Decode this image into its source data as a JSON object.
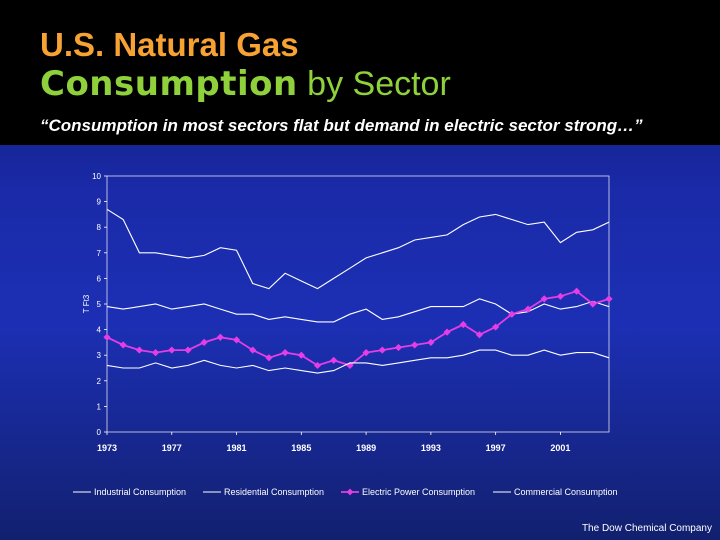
{
  "header": {
    "title_line1": "U.S. Natural Gas",
    "title_line2_bold": "Consumption",
    "title_line2_rest": "by Sector",
    "subtitle": "“Consumption in most sectors flat but demand in electric sector strong…”"
  },
  "footer": {
    "company": "The Dow Chemical Company"
  },
  "colors": {
    "header_bg": "#000000",
    "title1": "#f7a233",
    "title2": "#8fd13a",
    "series_line": "#ffffff",
    "electric": "#e63de6"
  },
  "chart_data": {
    "type": "line",
    "title": "",
    "xlabel": "",
    "ylabel": "T Ft3",
    "ylim": [
      0,
      10
    ],
    "yticks": [
      "0",
      "1",
      "2",
      "3",
      "4",
      "5",
      "6",
      "7",
      "8",
      "9",
      "10"
    ],
    "xtick_labels": [
      "1973",
      "1977",
      "1981",
      "1985",
      "1989",
      "1993",
      "1997",
      "2001"
    ],
    "x": [
      1973,
      1974,
      1975,
      1976,
      1977,
      1978,
      1979,
      1980,
      1981,
      1982,
      1983,
      1984,
      1985,
      1986,
      1987,
      1988,
      1989,
      1990,
      1991,
      1992,
      1993,
      1994,
      1995,
      1996,
      1997,
      1998,
      1999,
      2000,
      2001,
      2002,
      2003,
      2004
    ],
    "grid": false,
    "legend_position": "bottom",
    "series": [
      {
        "name": "Industrial Consumption",
        "marker": "none",
        "values": [
          8.7,
          8.3,
          7.0,
          7.0,
          6.9,
          6.8,
          6.9,
          7.2,
          7.1,
          5.8,
          5.6,
          6.2,
          5.9,
          5.6,
          6.0,
          6.4,
          6.8,
          7.0,
          7.2,
          7.5,
          7.6,
          7.7,
          8.1,
          8.4,
          8.5,
          8.3,
          8.1,
          8.2,
          7.4,
          7.8,
          7.9,
          8.2
        ]
      },
      {
        "name": "Residential Consumption",
        "marker": "none",
        "values": [
          4.9,
          4.8,
          4.9,
          5.0,
          4.8,
          4.9,
          5.0,
          4.8,
          4.6,
          4.6,
          4.4,
          4.5,
          4.4,
          4.3,
          4.3,
          4.6,
          4.8,
          4.4,
          4.5,
          4.7,
          4.9,
          4.9,
          4.9,
          5.2,
          5.0,
          4.6,
          4.7,
          5.0,
          4.8,
          4.9,
          5.1,
          4.9
        ]
      },
      {
        "name": "Electric Power Consumption",
        "marker": "diamond",
        "values": [
          3.7,
          3.4,
          3.2,
          3.1,
          3.2,
          3.2,
          3.5,
          3.7,
          3.6,
          3.2,
          2.9,
          3.1,
          3.0,
          2.6,
          2.8,
          2.6,
          3.1,
          3.2,
          3.3,
          3.4,
          3.5,
          3.9,
          4.2,
          3.8,
          4.1,
          4.6,
          4.8,
          5.2,
          5.3,
          5.5,
          5.0,
          5.2
        ]
      },
      {
        "name": "Commercial Consumption",
        "marker": "none",
        "values": [
          2.6,
          2.5,
          2.5,
          2.7,
          2.5,
          2.6,
          2.8,
          2.6,
          2.5,
          2.6,
          2.4,
          2.5,
          2.4,
          2.3,
          2.4,
          2.7,
          2.7,
          2.6,
          2.7,
          2.8,
          2.9,
          2.9,
          3.0,
          3.2,
          3.2,
          3.0,
          3.0,
          3.2,
          3.0,
          3.1,
          3.1,
          2.9
        ]
      }
    ]
  }
}
